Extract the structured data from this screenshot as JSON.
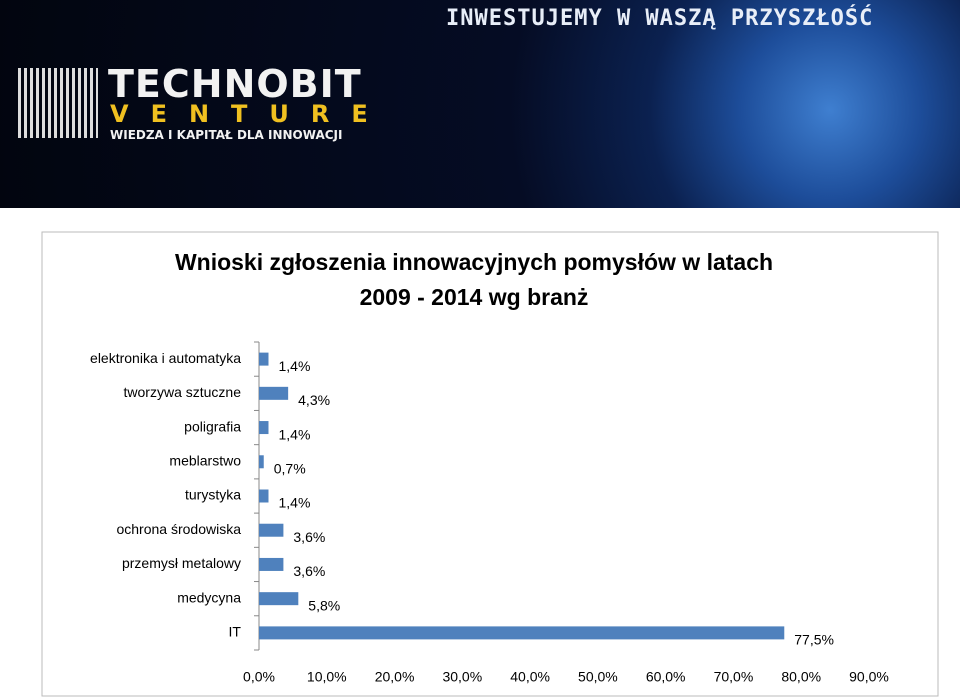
{
  "banner": {
    "slogan": "INWESTUJEMY W WASZĄ PRZYSZŁOŚĆ",
    "logo": "TECHNOBIT",
    "logo_sub": "VENTURE",
    "tagline": "WIEDZA I KAPITAŁ DLA INNOWACJI"
  },
  "chart_data": {
    "type": "bar",
    "orientation": "horizontal",
    "title": [
      "Wnioski zgłoszenia innowacyjnych pomysłów w latach",
      "2009 - 2014 wg branż"
    ],
    "categories": [
      "elektronika i automatyka",
      "tworzywa sztuczne",
      "poligrafia",
      "meblarstwo",
      "turystyka",
      "ochrona środowiska",
      "przemysł metalowy",
      "medycyna",
      "IT"
    ],
    "values": [
      1.4,
      4.3,
      1.4,
      0.7,
      1.4,
      3.6,
      3.6,
      5.8,
      77.5
    ],
    "value_labels": [
      "1,4%",
      "4,3%",
      "1,4%",
      "0,7%",
      "1,4%",
      "3,6%",
      "3,6%",
      "5,8%",
      "77,5%"
    ],
    "color": "#4f81bd",
    "xlim": [
      0,
      90
    ],
    "xticks": [
      {
        "value": 0,
        "label": "0,0%"
      },
      {
        "value": 10,
        "label": "10,0%"
      },
      {
        "value": 20,
        "label": "20,0%"
      },
      {
        "value": 30,
        "label": "30,0%"
      },
      {
        "value": 40,
        "label": "40,0%"
      },
      {
        "value": 50,
        "label": "50,0%"
      },
      {
        "value": 60,
        "label": "60,0%"
      },
      {
        "value": 70,
        "label": "70,0%"
      },
      {
        "value": 80,
        "label": "80,0%"
      },
      {
        "value": 90,
        "label": "90,0%"
      }
    ],
    "grid": false
  }
}
